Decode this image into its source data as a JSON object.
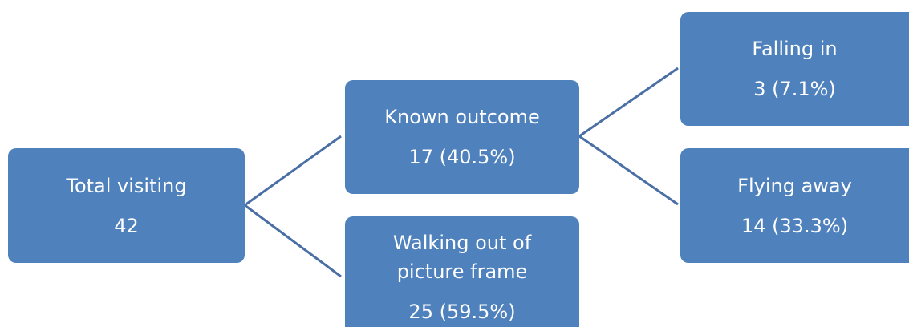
{
  "nodes": [
    {
      "label": [
        "Total visiting"
      ],
      "value": "42"
    },
    {
      "label": [
        "Known outcome"
      ],
      "value": "17 (40.5%)"
    },
    {
      "label": [
        "Walking out of",
        "picture frame"
      ],
      "value": "25 (59.5%)"
    },
    {
      "label": [
        "Falling in"
      ],
      "value": "3 (7.1%)"
    },
    {
      "label": [
        "Flying away"
      ],
      "value": "14 (33.3%)"
    }
  ]
}
